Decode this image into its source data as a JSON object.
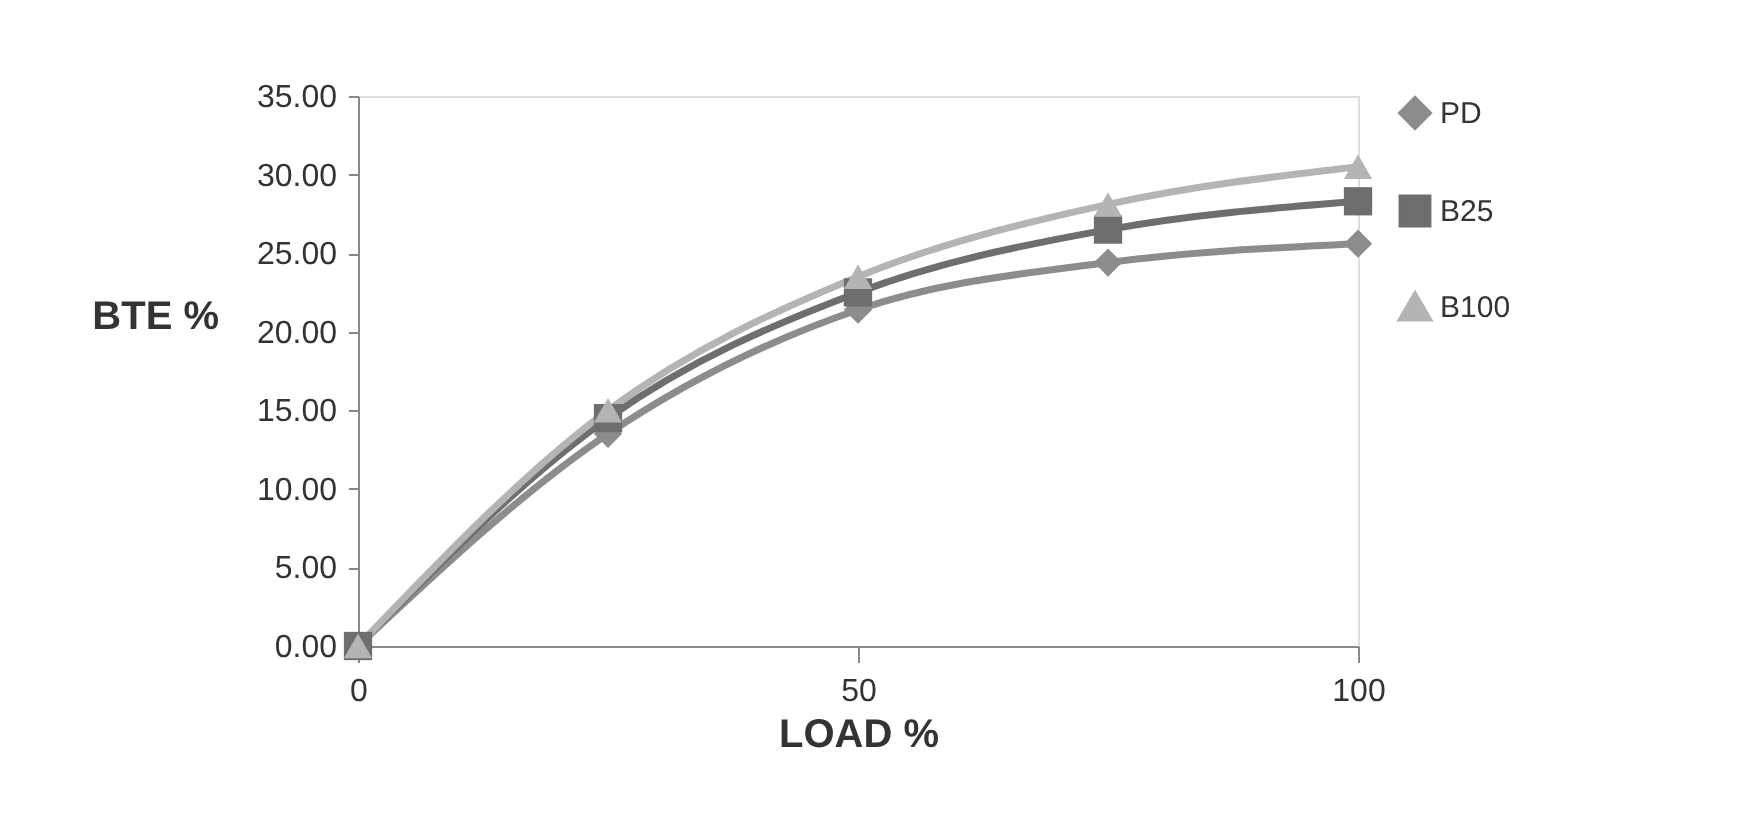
{
  "chart_data": {
    "type": "line",
    "xlabel": "LOAD  %",
    "ylabel": "BTE  %",
    "x": [
      0,
      25,
      50,
      75,
      100
    ],
    "xlim": [
      0,
      100
    ],
    "xticks": [
      0,
      50,
      100
    ],
    "ylim": [
      0,
      35
    ],
    "yticks": [
      {
        "value": 0,
        "label": "0.00"
      },
      {
        "value": 5,
        "label": "5.00"
      },
      {
        "value": 10,
        "label": "10.00"
      },
      {
        "value": 15,
        "label": "15.00"
      },
      {
        "value": 20,
        "label": "20.00"
      },
      {
        "value": 25,
        "label": "25.00"
      },
      {
        "value": 30,
        "label": "30.00"
      },
      {
        "value": 35,
        "label": "35.00"
      }
    ],
    "legend": "right",
    "grid": false,
    "line_style": "solid",
    "series": [
      {
        "name": "PD",
        "color": "#8c8c8c",
        "marker": "diamond",
        "values": [
          0,
          13.5,
          21.4,
          24.4,
          25.6
        ]
      },
      {
        "name": "B25",
        "color": "#6e6e6e",
        "marker": "square",
        "values": [
          0,
          14.5,
          22.5,
          26.5,
          28.3
        ]
      },
      {
        "name": "B100",
        "color": "#b4b4b4",
        "marker": "triangle",
        "values": [
          0,
          15.0,
          23.5,
          28.1,
          30.5
        ]
      }
    ]
  }
}
